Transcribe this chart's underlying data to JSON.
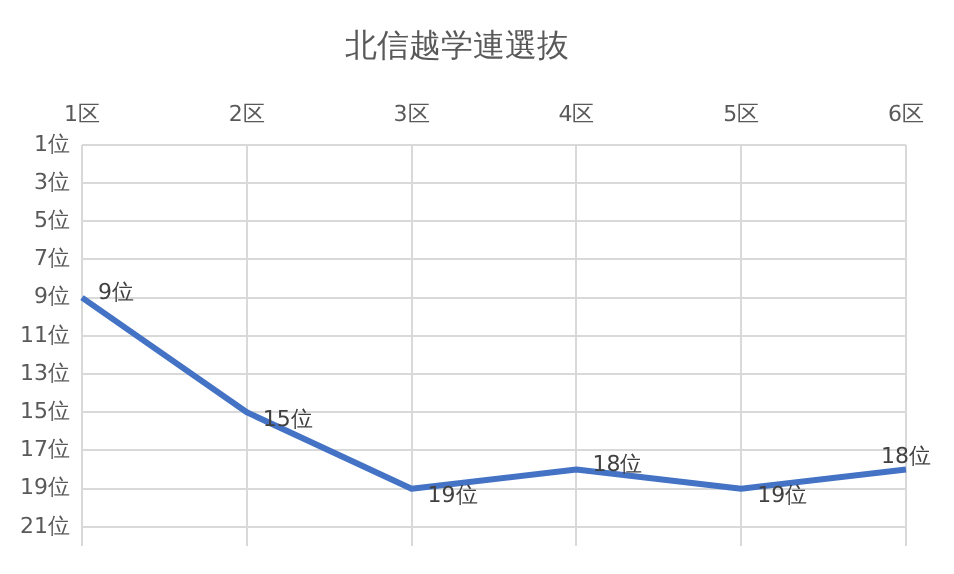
{
  "chart_data": {
    "type": "line",
    "title": "北信越学連選抜",
    "categories": [
      "1区",
      "2区",
      "3区",
      "4区",
      "5区",
      "6区"
    ],
    "series": [
      {
        "color": "#4472c4",
        "values": [
          9,
          15,
          19,
          18,
          19,
          18
        ],
        "value_labels": [
          "9位",
          "15位",
          "19位",
          "18位",
          "19位",
          "18位"
        ]
      }
    ],
    "ylim": [
      22,
      1
    ],
    "yticks": [
      {
        "value": 1,
        "label": "1位"
      },
      {
        "value": 3,
        "label": "3位"
      },
      {
        "value": 5,
        "label": "5位"
      },
      {
        "value": 7,
        "label": "7位"
      },
      {
        "value": 9,
        "label": "9位"
      },
      {
        "value": 11,
        "label": "11位"
      },
      {
        "value": 13,
        "label": "13位"
      },
      {
        "value": 15,
        "label": "15位"
      },
      {
        "value": 17,
        "label": "17位"
      },
      {
        "value": 19,
        "label": "19位"
      },
      {
        "value": 21,
        "label": "21位"
      }
    ],
    "grid": true,
    "legend": false,
    "marker": "none",
    "line_style": "solid"
  }
}
